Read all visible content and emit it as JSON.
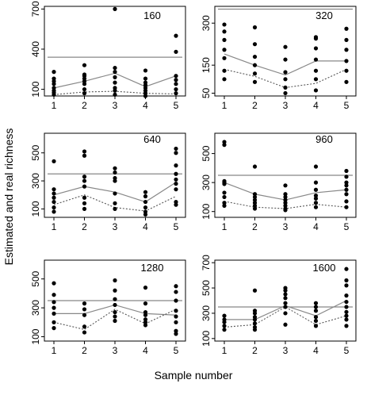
{
  "xlabel": "Sample number",
  "ylabel": "Estimated and real richness",
  "chart_data": [
    {
      "type": "scatter",
      "title": "160",
      "x_ticks": [
        1,
        2,
        3,
        4,
        5
      ],
      "y_ticks": [
        100,
        400,
        700
      ],
      "ylim": [
        50,
        720
      ],
      "real_richness": 340,
      "estimated_line": [
        110,
        160,
        220,
        120,
        200
      ],
      "observed_line": [
        60,
        80,
        85,
        70,
        65
      ],
      "points": {
        "1": [
          60,
          75,
          90,
          110,
          140,
          160,
          180,
          230
        ],
        "2": [
          70,
          100,
          140,
          160,
          180,
          200,
          210,
          280
        ],
        "3": [
          60,
          90,
          110,
          150,
          190,
          230,
          260,
          700
        ],
        "4": [
          50,
          70,
          90,
          110,
          130,
          150,
          180,
          240
        ],
        "5": [
          70,
          100,
          140,
          170,
          200,
          380,
          500
        ]
      }
    },
    {
      "type": "scatter",
      "title": "320",
      "x_ticks": [
        1,
        2,
        3,
        4,
        5
      ],
      "y_ticks": [
        50,
        150,
        300
      ],
      "ylim": [
        40,
        360
      ],
      "real_richness": 350,
      "estimated_line": [
        190,
        150,
        115,
        165,
        165
      ],
      "observed_line": [
        135,
        110,
        70,
        85,
        135
      ],
      "points": {
        "1": [
          100,
          130,
          175,
          205,
          240,
          270,
          295
        ],
        "2": [
          90,
          120,
          150,
          180,
          225,
          285
        ],
        "3": [
          50,
          70,
          100,
          125,
          170,
          215
        ],
        "4": [
          60,
          100,
          130,
          170,
          210,
          245,
          250
        ],
        "5": [
          90,
          130,
          165,
          205,
          240,
          280
        ]
      }
    },
    {
      "type": "scatter",
      "title": "640",
      "x_ticks": [
        1,
        2,
        3,
        4,
        5
      ],
      "y_ticks": [
        100,
        300,
        500
      ],
      "ylim": [
        40,
        640
      ],
      "real_richness": 350,
      "estimated_line": [
        200,
        260,
        220,
        150,
        290
      ],
      "observed_line": [
        130,
        200,
        110,
        85,
        190
      ],
      "points": {
        "1": [
          80,
          110,
          150,
          180,
          210,
          240,
          440
        ],
        "2": [
          100,
          140,
          180,
          260,
          300,
          330,
          480,
          510
        ],
        "3": [
          100,
          140,
          210,
          300,
          320,
          360,
          390
        ],
        "4": [
          60,
          80,
          110,
          150,
          190,
          220
        ],
        "5": [
          130,
          150,
          240,
          280,
          310,
          350,
          410,
          500,
          530
        ]
      }
    },
    {
      "type": "scatter",
      "title": "960",
      "x_ticks": [
        1,
        2,
        3,
        4,
        5
      ],
      "y_ticks": [
        100,
        300,
        500
      ],
      "ylim": [
        60,
        640
      ],
      "real_richness": 350,
      "estimated_line": [
        300,
        220,
        180,
        230,
        250
      ],
      "observed_line": [
        170,
        130,
        120,
        150,
        130
      ],
      "points": {
        "1": [
          140,
          160,
          200,
          230,
          290,
          300,
          310,
          560,
          580
        ],
        "2": [
          120,
          140,
          160,
          180,
          200,
          220,
          410
        ],
        "3": [
          110,
          120,
          140,
          160,
          180,
          200,
          220,
          280
        ],
        "4": [
          130,
          160,
          190,
          210,
          250,
          300,
          410
        ],
        "5": [
          130,
          170,
          220,
          250,
          280,
          300,
          340,
          380
        ]
      }
    },
    {
      "type": "scatter",
      "title": "1280",
      "x_ticks": [
        1,
        2,
        3,
        4,
        5
      ],
      "y_ticks": [
        100,
        300,
        500
      ],
      "ylim": [
        70,
        630
      ],
      "real_richness": 350,
      "estimated_line": [
        260,
        260,
        320,
        260,
        250
      ],
      "observed_line": [
        200,
        150,
        290,
        190,
        290
      ],
      "points": {
        "1": [
          160,
          200,
          260,
          300,
          340,
          390,
          470
        ],
        "2": [
          130,
          170,
          250,
          290,
          330
        ],
        "3": [
          210,
          240,
          270,
          320,
          360,
          420,
          490
        ],
        "4": [
          180,
          200,
          220,
          250,
          270,
          330,
          440
        ],
        "5": [
          120,
          140,
          200,
          240,
          280,
          350,
          410,
          450
        ]
      }
    },
    {
      "type": "scatter",
      "title": "1600",
      "x_ticks": [
        1,
        2,
        3,
        4,
        5
      ],
      "y_ticks": [
        100,
        300,
        500,
        700
      ],
      "ylim": [
        80,
        720
      ],
      "real_richness": 350,
      "estimated_line": [
        250,
        250,
        360,
        280,
        400
      ],
      "observed_line": [
        190,
        210,
        350,
        210,
        280
      ],
      "points": {
        "1": [
          170,
          200,
          230,
          250,
          280
        ],
        "2": [
          170,
          190,
          220,
          250,
          270,
          300,
          320,
          480
        ],
        "3": [
          210,
          300,
          350,
          380,
          420,
          450,
          480,
          500
        ],
        "4": [
          200,
          240,
          270,
          320,
          350,
          380
        ],
        "5": [
          200,
          250,
          280,
          310,
          350,
          390,
          440,
          520,
          560,
          650
        ]
      }
    }
  ]
}
